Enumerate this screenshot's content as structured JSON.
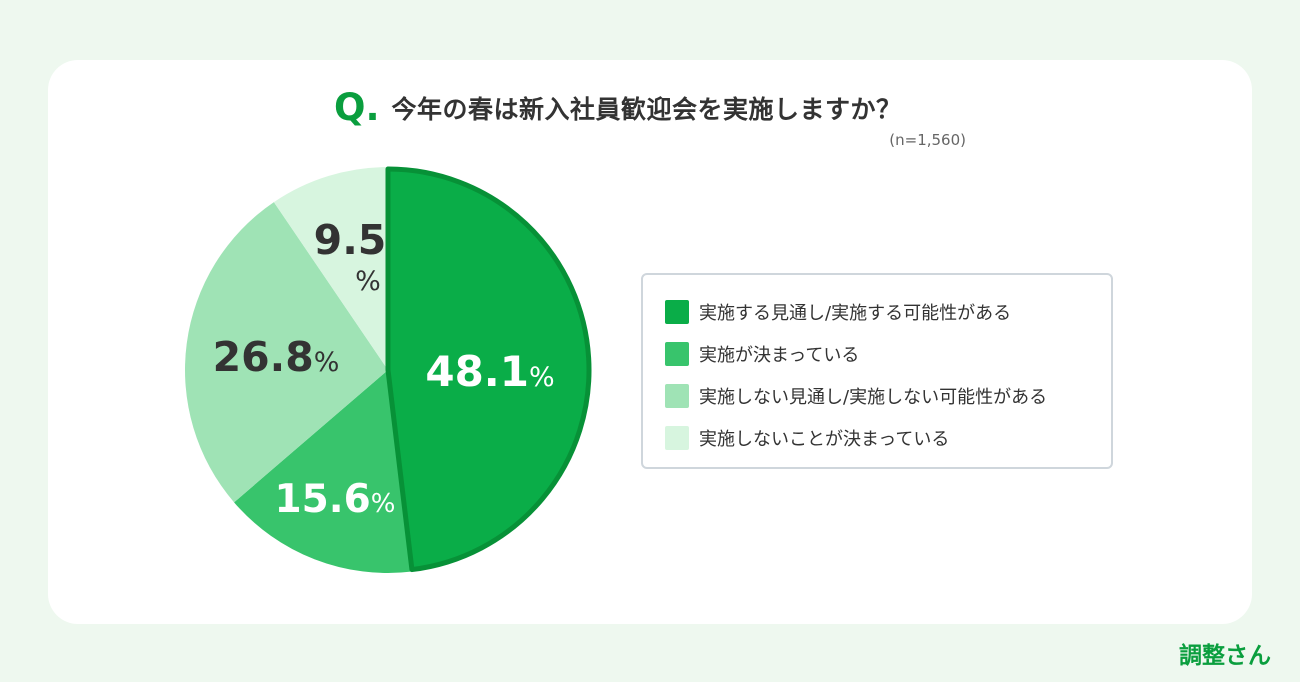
{
  "title": {
    "q_mark": "Q",
    "q_dot": ".",
    "text": "今年の春は新入社員歓迎会を実施しますか？"
  },
  "sample_note": "(n=1,560)",
  "chart_data": {
    "type": "pie",
    "title": "今年の春は新入社員歓迎会を実施しますか？",
    "start_angle_deg": 0,
    "direction": "clockwise",
    "slices": [
      {
        "label": "実施する見通し/実施する可能性がある",
        "value": 48.1,
        "display": "48.1",
        "unit": "%",
        "color": "#0aad48",
        "label_color": "#ffffff"
      },
      {
        "label": "実施が決まっている",
        "value": 15.6,
        "display": "15.6",
        "unit": "%",
        "color": "#38c46c",
        "label_color": "#ffffff"
      },
      {
        "label": "実施しない見通し/実施しない可能性がある",
        "value": 26.8,
        "display": "26.8",
        "unit": "%",
        "color": "#9fe3b5",
        "label_color": "#333333"
      },
      {
        "label": "実施しないことが決まっている",
        "value": 9.5,
        "display": "9.5",
        "unit": "%",
        "color": "#d7f5df",
        "label_color": "#333333"
      }
    ],
    "highlight_stroke": "#079137"
  },
  "legend": {
    "items": [
      {
        "label": "実施する見通し/実施する可能性がある",
        "color": "#0aad48"
      },
      {
        "label": "実施が決まっている",
        "color": "#38c46c"
      },
      {
        "label": "実施しない見通し/実施しない可能性がある",
        "color": "#9fe3b5"
      },
      {
        "label": "実施しないことが決まっている",
        "color": "#d7f5df"
      }
    ]
  },
  "logo": {
    "text": "調整さん",
    "color": "#0a9e3e"
  }
}
